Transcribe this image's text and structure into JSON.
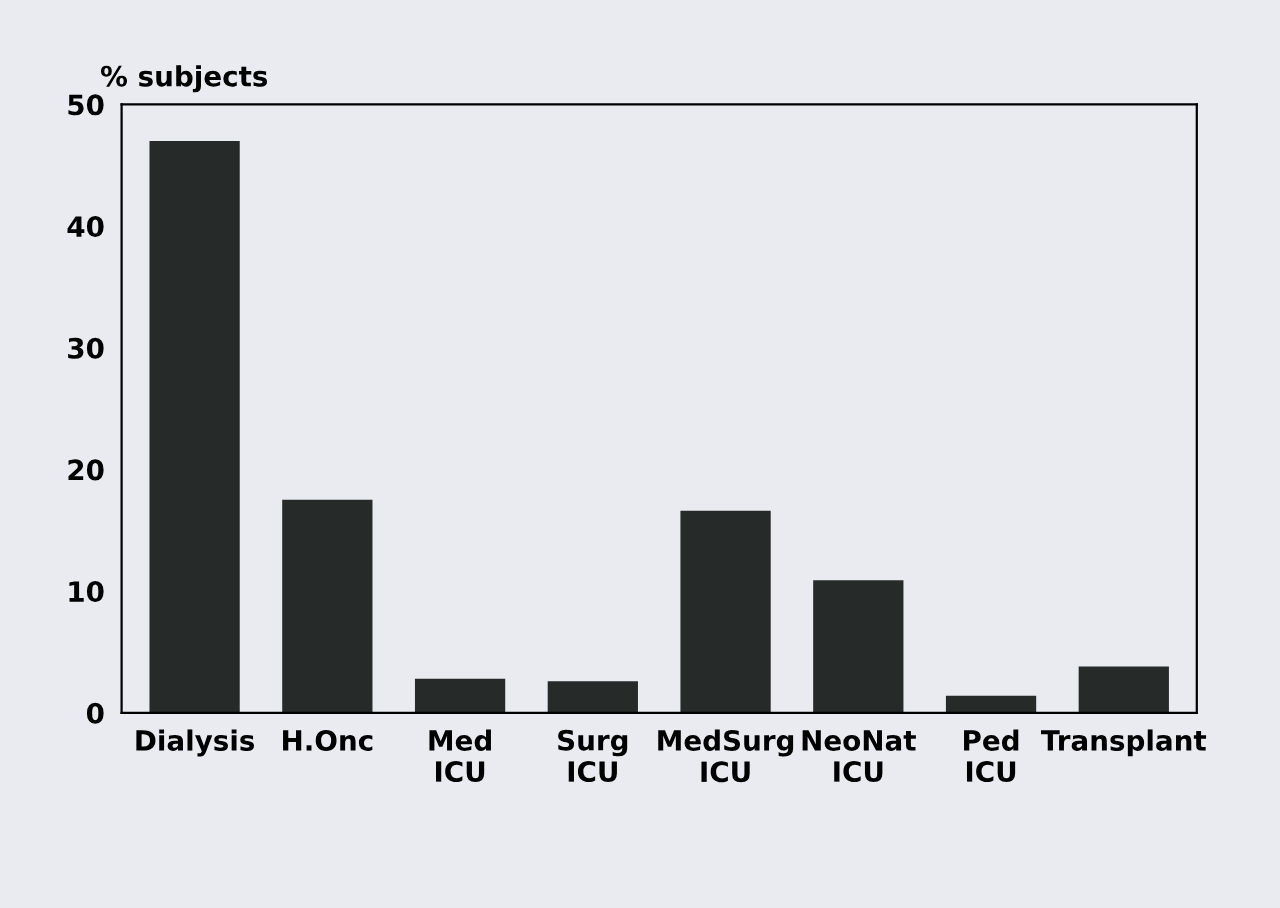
{
  "chart_data": {
    "type": "bar",
    "ylabel": "% subjects",
    "categories": [
      "Dialysis",
      "H.Onc",
      "Med\nICU",
      "Surg\nICU",
      "MedSurg\nICU",
      "NeoNat\nICU",
      "Ped\nICU",
      "Transplant"
    ],
    "values": [
      47.0,
      17.5,
      2.8,
      2.6,
      16.6,
      10.9,
      1.4,
      3.8
    ],
    "color": "#262a28",
    "ylim": [
      0,
      50
    ],
    "yticks": [
      0,
      10,
      20,
      30,
      40,
      50
    ],
    "grid": false
  }
}
